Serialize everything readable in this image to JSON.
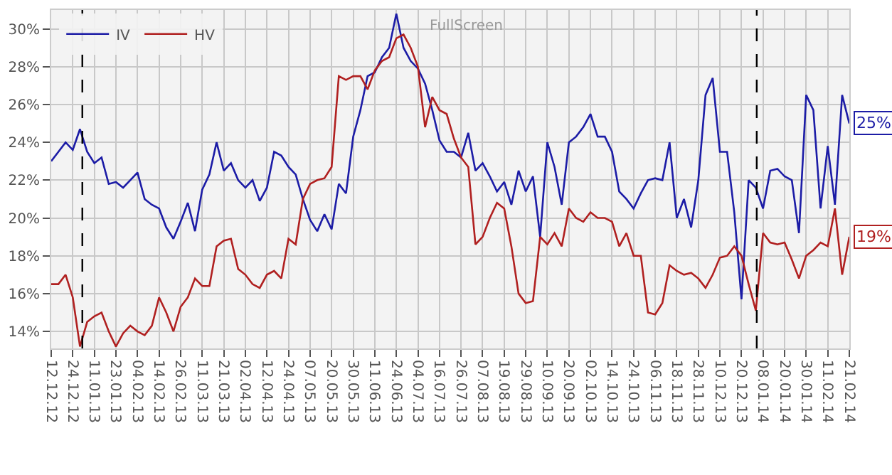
{
  "chart_data": {
    "type": "line",
    "annotations": [
      "FullScreen"
    ],
    "categories": [
      "12.12.12",
      null,
      null,
      "24.12.12",
      null,
      null,
      "11.01.13",
      null,
      null,
      "23.01.13",
      null,
      null,
      "04.02.13",
      null,
      null,
      "14.02.13",
      null,
      null,
      "26.02.13",
      null,
      null,
      "11.03.13",
      null,
      null,
      "21.03.13",
      null,
      null,
      "02.04.13",
      null,
      null,
      "12.04.13",
      null,
      null,
      "24.04.13",
      null,
      null,
      "07.05.13",
      null,
      null,
      "20.05.13",
      null,
      null,
      "30.05.13",
      null,
      null,
      "11.06.13",
      null,
      null,
      "24.06.13",
      null,
      null,
      "04.07.13",
      null,
      null,
      "16.07.13",
      null,
      null,
      "26.07.13",
      null,
      null,
      "07.08.13",
      null,
      null,
      "19.08.13",
      null,
      null,
      "29.08.13",
      null,
      null,
      "10.09.13",
      null,
      null,
      "20.09.13",
      null,
      null,
      "02.10.13",
      null,
      null,
      "14.10.13",
      null,
      null,
      "24.10.13",
      null,
      null,
      "06.11.13",
      null,
      null,
      "18.11.13",
      null,
      null,
      "28.11.13",
      null,
      null,
      "10.12.13",
      null,
      null,
      "20.12.13",
      null,
      null,
      "08.01.14",
      null,
      null,
      "20.01.14",
      null,
      null,
      "30.01.14",
      null,
      null,
      "11.02.14",
      null,
      null,
      "21.02.14"
    ],
    "series": [
      {
        "name": "IV",
        "color": "#1c1ca6",
        "values": [
          23.0,
          23.5,
          24.0,
          23.6,
          24.7,
          23.5,
          22.9,
          23.2,
          21.8,
          21.9,
          21.6,
          22.0,
          22.4,
          21.0,
          20.7,
          20.5,
          19.5,
          18.9,
          19.8,
          20.8,
          19.3,
          21.5,
          22.3,
          24.0,
          22.5,
          22.9,
          22.0,
          21.6,
          22.0,
          20.9,
          21.6,
          23.5,
          23.3,
          22.7,
          22.3,
          21.0,
          19.9,
          19.3,
          20.2,
          19.4,
          21.8,
          21.3,
          24.3,
          25.7,
          27.5,
          27.7,
          28.5,
          29.0,
          30.8,
          29.0,
          28.3,
          27.9,
          27.1,
          25.7,
          24.1,
          23.5,
          23.5,
          23.2,
          24.5,
          22.5,
          22.9,
          22.2,
          21.4,
          21.9,
          20.7,
          22.5,
          21.4,
          22.2,
          19.0,
          24.0,
          22.7,
          20.7,
          24.0,
          24.3,
          24.8,
          25.5,
          24.3,
          24.3,
          23.5,
          21.4,
          21.0,
          20.5,
          21.3,
          22.0,
          22.1,
          22.0,
          24.0,
          20.0,
          21.0,
          19.5,
          22.0,
          26.5,
          27.4,
          23.5,
          23.5,
          20.3,
          15.7,
          22.0,
          21.6,
          20.5,
          22.5,
          22.6,
          22.2,
          22.0,
          19.2,
          26.5,
          25.7,
          20.5,
          23.8,
          20.7,
          26.5,
          25
        ],
        "value_labels": [
          null,
          null,
          null,
          null,
          null,
          null,
          null,
          null,
          null,
          null,
          null,
          null,
          null,
          null,
          null,
          null,
          null,
          null,
          null,
          null,
          null,
          null,
          null,
          null,
          null,
          null,
          null,
          null,
          null,
          null,
          null,
          null,
          null,
          null,
          null,
          null,
          null,
          null,
          null,
          null,
          null,
          null,
          null,
          null,
          null,
          null,
          null,
          null,
          null,
          null,
          null,
          null,
          null,
          null,
          null,
          null,
          null,
          null,
          null,
          null,
          null,
          null,
          null,
          null,
          null,
          null,
          null,
          null,
          null,
          null,
          null,
          null,
          null,
          null,
          null,
          null,
          null,
          null,
          null,
          null,
          null,
          null,
          null,
          null,
          null,
          null,
          null,
          null,
          null,
          null,
          null,
          null,
          null,
          null,
          null,
          null,
          null,
          null,
          null,
          null,
          null,
          null,
          null,
          null,
          null,
          null,
          null,
          null,
          null,
          null,
          null,
          "25%"
        ]
      },
      {
        "name": "HV",
        "color": "#b02020",
        "values": [
          16.5,
          16.5,
          17.0,
          15.8,
          13.2,
          14.5,
          14.8,
          15.0,
          14.0,
          13.2,
          13.9,
          14.3,
          14.0,
          13.8,
          14.3,
          15.8,
          15.0,
          14.0,
          15.3,
          15.8,
          16.8,
          16.4,
          16.4,
          18.5,
          18.8,
          18.9,
          17.3,
          17.0,
          16.5,
          16.3,
          17.0,
          17.2,
          16.8,
          18.9,
          18.6,
          21.0,
          21.8,
          22.0,
          22.1,
          22.7,
          27.5,
          27.3,
          27.5,
          27.5,
          26.8,
          27.8,
          28.3,
          28.5,
          29.5,
          29.7,
          29.0,
          28.0,
          24.8,
          26.4,
          25.7,
          25.5,
          24.2,
          23.2,
          22.7,
          18.6,
          19.0,
          20.0,
          20.8,
          20.5,
          18.5,
          16.0,
          15.5,
          15.6,
          19.0,
          18.6,
          19.2,
          18.5,
          20.5,
          20.0,
          19.8,
          20.3,
          20.0,
          20.0,
          19.8,
          18.5,
          19.2,
          18.0,
          18.0,
          15.0,
          14.9,
          15.5,
          17.5,
          17.2,
          17.0,
          17.1,
          16.8,
          16.3,
          17.0,
          17.9,
          18.0,
          18.5,
          18.0,
          16.5,
          15.1,
          19.2,
          18.7,
          18.6,
          18.7,
          17.8,
          16.8,
          18.0,
          18.3,
          18.7,
          18.5,
          20.5,
          17.0,
          19
        ],
        "value_labels": [
          null,
          null,
          null,
          null,
          null,
          null,
          null,
          null,
          null,
          null,
          null,
          null,
          null,
          null,
          null,
          null,
          null,
          null,
          null,
          null,
          null,
          null,
          null,
          null,
          null,
          null,
          null,
          null,
          null,
          null,
          null,
          null,
          null,
          null,
          null,
          null,
          null,
          null,
          null,
          null,
          null,
          null,
          null,
          null,
          null,
          null,
          null,
          null,
          null,
          null,
          null,
          null,
          null,
          null,
          null,
          null,
          null,
          null,
          null,
          null,
          null,
          null,
          null,
          null,
          null,
          null,
          null,
          null,
          null,
          null,
          null,
          null,
          null,
          null,
          null,
          null,
          null,
          null,
          null,
          null,
          null,
          null,
          null,
          null,
          null,
          null,
          null,
          null,
          null,
          null,
          null,
          null,
          null,
          null,
          null,
          null,
          null,
          null,
          null,
          null,
          null,
          null,
          null,
          null,
          null,
          null,
          null,
          null,
          null,
          null,
          null,
          "19%"
        ]
      }
    ],
    "ylim": [
      13.1,
      31
    ],
    "yticks": [
      {
        "value": 14,
        "label": "14%"
      },
      {
        "value": 16,
        "label": "16%"
      },
      {
        "value": 18,
        "label": "18%"
      },
      {
        "value": 20,
        "label": "20%"
      },
      {
        "value": 22,
        "label": "22%"
      },
      {
        "value": 24,
        "label": "24%"
      },
      {
        "value": 26,
        "label": "26%"
      },
      {
        "value": 28,
        "label": "28%"
      },
      {
        "value": 30,
        "label": "30%"
      }
    ],
    "grid": true,
    "legend": "top left",
    "line_style": "solid",
    "marker": "none"
  }
}
